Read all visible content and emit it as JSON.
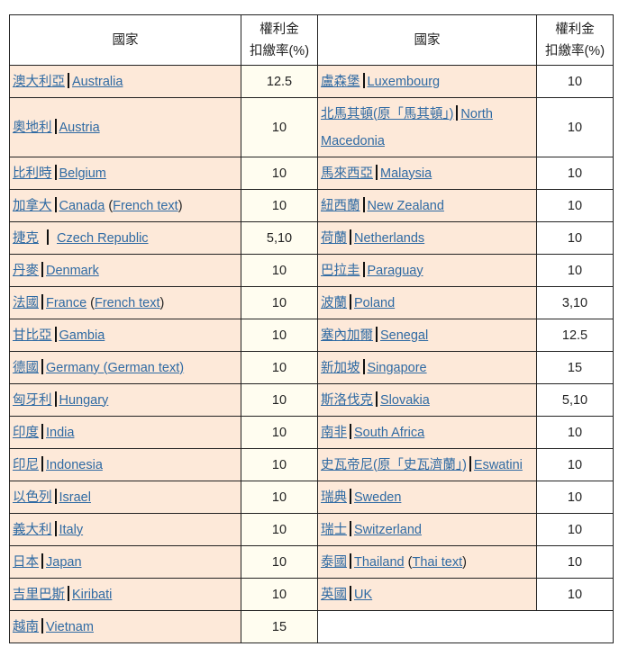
{
  "headers": {
    "country": "國家",
    "rate_line1": "權利金",
    "rate_line2": "扣繳率(%)"
  },
  "left": [
    {
      "cn": "澳大利亞",
      "en": "Australia",
      "rate": "12.5"
    },
    {
      "cn": "奧地利",
      "en": "Austria",
      "rate": "10"
    },
    {
      "cn": "比利時",
      "en": "Belgium",
      "rate": "10"
    },
    {
      "cn": "加拿大",
      "en": "Canada",
      "extra": "French text",
      "rate": "10"
    },
    {
      "cn": "捷克",
      "en": "Czech Republic",
      "rate": "5,10"
    },
    {
      "cn": "丹麥",
      "en": "Denmark",
      "rate": "10"
    },
    {
      "cn": "法國",
      "en": "France",
      "extra": "French text",
      "rate": "10"
    },
    {
      "cn": "甘比亞",
      "en": "Gambia",
      "rate": "10"
    },
    {
      "cn": "德國",
      "en": "Germany (German text)",
      "rate": "10"
    },
    {
      "cn": "匈牙利",
      "en": "Hungary",
      "rate": "10"
    },
    {
      "cn": "印度",
      "en": "India",
      "rate": "10"
    },
    {
      "cn": "印尼",
      "en": "Indonesia",
      "rate": "10"
    },
    {
      "cn": "以色列",
      "en": "Israel",
      "rate": "10"
    },
    {
      "cn": "義大利",
      "en": "Italy",
      "rate": "10"
    },
    {
      "cn": "日本",
      "en": "Japan",
      "rate": "10"
    },
    {
      "cn": "吉里巴斯",
      "en": "Kiribati",
      "rate": "10"
    },
    {
      "cn": "越南",
      "en": "Vietnam",
      "rate": "15"
    }
  ],
  "right": [
    {
      "cn": "盧森堡",
      "en": "Luxembourg",
      "rate": "10"
    },
    {
      "cn": "北馬其頓(原「馬其頓」)",
      "en": "North Macedonia",
      "rate": "10"
    },
    {
      "cn": "馬來西亞",
      "en": "Malaysia",
      "rate": "10"
    },
    {
      "cn": "紐西蘭",
      "en": "New Zealand",
      "rate": "10"
    },
    {
      "cn": "荷蘭",
      "en": "Netherlands",
      "rate": "10"
    },
    {
      "cn": "巴拉圭",
      "en": "Paraguay",
      "rate": "10"
    },
    {
      "cn": "波蘭",
      "en": "Poland",
      "rate": "3,10"
    },
    {
      "cn": "塞內加爾",
      "en": "Senegal",
      "rate": "12.5"
    },
    {
      "cn": "新加坡",
      "en": "Singapore",
      "rate": "15"
    },
    {
      "cn": "斯洛伐克",
      "en": "Slovakia",
      "rate": "5,10"
    },
    {
      "cn": "南非",
      "en": "South Africa",
      "rate": "10"
    },
    {
      "cn": "史瓦帝尼(原「史瓦濟蘭」)",
      "en": "Eswatini",
      "rate": "10"
    },
    {
      "cn": "瑞典",
      "en": "Sweden",
      "rate": "10"
    },
    {
      "cn": "瑞士",
      "en": "Switzerland",
      "rate": "10"
    },
    {
      "cn": "泰國",
      "en": "Thailand",
      "extra": "Thai text",
      "rate": "10"
    },
    {
      "cn": "英國",
      "en": "UK",
      "rate": "10"
    }
  ],
  "colors": {
    "country_bg": "#fde9d9",
    "rate_left_bg": "#fffdf0",
    "link": "#2f6aa3"
  }
}
